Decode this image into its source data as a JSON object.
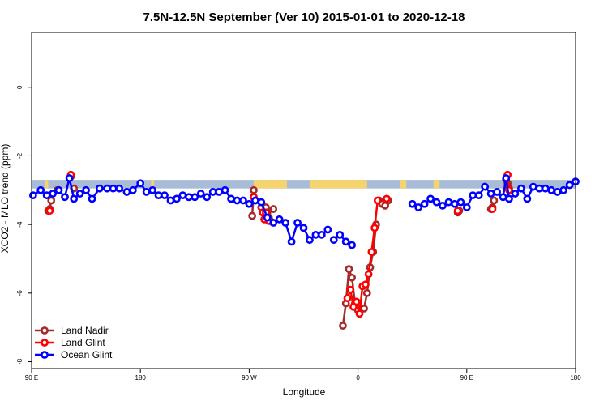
{
  "chart_data": {
    "type": "line",
    "title": "7.5N-12.5N September (Ver 10)   2015-01-01 to 2020-12-18",
    "xlabel": "Longitude",
    "ylabel": "XCO2 - MLO trend (ppm)",
    "xlim": [
      -180,
      180
    ],
    "ylim": [
      -8.2,
      1.6
    ],
    "x_ticks": [
      {
        "value": -180,
        "label": "90 E"
      },
      {
        "value": -108,
        "label": "180"
      },
      {
        "value": -36,
        "label": "90 W"
      },
      {
        "value": 36,
        "label": "0"
      },
      {
        "value": 108,
        "label": "90 E"
      },
      {
        "value": 180,
        "label": "180"
      }
    ],
    "y_ticks": [
      {
        "value": 0,
        "label": "0"
      },
      {
        "value": -2,
        "label": "-2"
      },
      {
        "value": -4,
        "label": "-4"
      },
      {
        "value": -6,
        "label": "-6"
      },
      {
        "value": -8,
        "label": "-8"
      }
    ],
    "grid": false,
    "legend_position": "bottom-left",
    "land_mask": {
      "y_band": [
        -2.95,
        -2.7
      ],
      "ocean_color": "#a8bcd8",
      "land_color": "#f5d36e",
      "land_segments": [
        [
          -171,
          -169
        ],
        [
          -101,
          -99
        ],
        [
          -33,
          -11
        ],
        [
          4,
          42
        ],
        [
          64,
          68
        ],
        [
          86,
          90
        ]
      ]
    },
    "series": [
      {
        "name": "Land Nadir",
        "color": "#a52a2a",
        "segments": [
          {
            "x": [
              -169,
              -168,
              -167
            ],
            "y": [
              -3.6,
              -3.55,
              -3.3
            ]
          },
          {
            "x": [
              -163
            ],
            "y": [
              -3.0
            ]
          },
          {
            "x": [
              -154
            ],
            "y": [
              -2.6
            ]
          },
          {
            "x": [
              -152
            ],
            "y": [
              -2.95
            ]
          },
          {
            "x": [
              -34,
              -33,
              -32
            ],
            "y": [
              -3.75,
              -3.0,
              -3.3
            ]
          },
          {
            "x": [
              -28,
              -27,
              -26,
              -25,
              -24,
              -23,
              -22
            ],
            "y": [
              -3.5,
              -3.65,
              -3.65,
              -3.5,
              -3.65,
              -3.8,
              -3.9
            ]
          },
          {
            "x": [
              -20
            ],
            "y": [
              -3.55
            ]
          },
          {
            "x": [
              26,
              28,
              30,
              32,
              34,
              36,
              38,
              40,
              42,
              44,
              46,
              48
            ],
            "y": [
              -6.95,
              -6.3,
              -5.3,
              -5.55,
              -6.3,
              -6.5,
              -6.45,
              -6.45,
              -6.0,
              -5.25,
              -4.8,
              -4.0
            ]
          },
          {
            "x": [
              50,
              52,
              54,
              56
            ],
            "y": [
              -3.3,
              -3.4,
              -3.45,
              -3.3
            ]
          },
          {
            "x": [
              102,
              103
            ],
            "y": [
              -3.65,
              -3.6
            ]
          },
          {
            "x": [
              124,
              125,
              126
            ],
            "y": [
              -3.55,
              -3.5,
              -3.3
            ]
          },
          {
            "x": [
              134,
              135,
              136
            ],
            "y": [
              -2.7,
              -2.8,
              -2.95
            ]
          }
        ]
      },
      {
        "name": "Land Glint",
        "color": "#ff0000",
        "segments": [
          {
            "x": [
              -168
            ],
            "y": [
              -3.6
            ]
          },
          {
            "x": [
              -154
            ],
            "y": [
              -2.55
            ]
          },
          {
            "x": [
              -33
            ],
            "y": [
              -3.2
            ]
          },
          {
            "x": [
              -27,
              -26,
              -25,
              -23
            ],
            "y": [
              -3.65,
              -3.85,
              -3.65,
              -3.9
            ]
          },
          {
            "x": [
              29,
              31,
              33,
              35,
              37,
              39,
              41,
              43,
              45,
              47,
              49
            ],
            "y": [
              -6.15,
              -5.9,
              -6.4,
              -6.25,
              -6.6,
              -5.8,
              -5.75,
              -5.45,
              -4.8,
              -4.1,
              -3.3
            ]
          },
          {
            "x": [
              55
            ],
            "y": [
              -3.25
            ]
          },
          {
            "x": [
              102
            ],
            "y": [
              -3.6
            ]
          },
          {
            "x": [
              125
            ],
            "y": [
              -3.55
            ]
          },
          {
            "x": [
              135,
              136
            ],
            "y": [
              -2.55,
              -3.0
            ]
          }
        ]
      },
      {
        "name": "Ocean Glint",
        "color": "#0000ff",
        "segments": [
          {
            "x": [
              -179,
              -174,
              -170,
              -166,
              -162,
              -158,
              -155,
              -152,
              -148,
              -144,
              -140,
              -135,
              -130,
              -126,
              -122,
              -117,
              -113,
              -108,
              -104,
              -100,
              -96,
              -92,
              -88,
              -84,
              -80,
              -76,
              -72,
              -68,
              -64,
              -60,
              -56,
              -52,
              -48,
              -44,
              -40,
              -36,
              -32,
              -28,
              -24,
              -20,
              -16,
              -12,
              -8,
              -4,
              0,
              4,
              8,
              12,
              16
            ],
            "y": [
              -3.15,
              -3.0,
              -3.15,
              -3.1,
              -3.0,
              -3.2,
              -2.65,
              -3.25,
              -3.1,
              -3.0,
              -3.25,
              -2.95,
              -2.95,
              -2.95,
              -2.95,
              -3.05,
              -3.0,
              -2.8,
              -3.05,
              -3.0,
              -3.15,
              -3.15,
              -3.3,
              -3.25,
              -3.15,
              -3.2,
              -3.2,
              -3.1,
              -3.2,
              -3.05,
              -3.05,
              -3.0,
              -3.25,
              -3.3,
              -3.3,
              -3.4,
              -3.3,
              -3.35,
              -3.8,
              -3.95,
              -3.85,
              -3.95,
              -4.5,
              -3.95,
              -4.1,
              -4.45,
              -4.3,
              -4.3,
              -4.15
            ]
          },
          {
            "x": [
              20,
              24,
              28,
              32
            ],
            "y": [
              -4.45,
              -4.3,
              -4.5,
              -4.6
            ]
          },
          {
            "x": [
              72,
              76,
              80,
              84,
              88,
              92,
              96,
              100,
              104,
              108,
              112,
              116,
              120,
              124,
              128,
              132,
              134,
              136,
              140,
              144,
              148,
              152,
              156,
              160,
              164,
              168,
              172,
              176,
              180
            ],
            "y": [
              -3.4,
              -3.5,
              -3.4,
              -3.25,
              -3.35,
              -3.45,
              -3.35,
              -3.4,
              -3.35,
              -3.5,
              -3.15,
              -3.15,
              -2.9,
              -3.1,
              -3.05,
              -3.2,
              -2.65,
              -3.25,
              -3.1,
              -2.95,
              -3.25,
              -2.9,
              -2.95,
              -2.95,
              -3.0,
              -3.05,
              -3.0,
              -2.85,
              -2.75
            ]
          }
        ]
      }
    ]
  }
}
